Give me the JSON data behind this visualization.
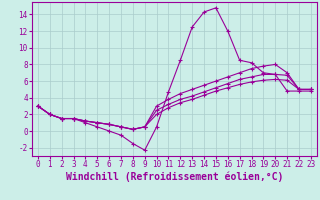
{
  "xlabel": "Windchill (Refroidissement éolien,°C)",
  "xlim": [
    -0.5,
    23.5
  ],
  "ylim": [
    -3,
    15.5
  ],
  "xticks": [
    0,
    1,
    2,
    3,
    4,
    5,
    6,
    7,
    8,
    9,
    10,
    11,
    12,
    13,
    14,
    15,
    16,
    17,
    18,
    19,
    20,
    21,
    22,
    23
  ],
  "yticks": [
    -2,
    0,
    2,
    4,
    6,
    8,
    10,
    12,
    14
  ],
  "bg_color": "#cceee8",
  "line_color": "#990099",
  "grid_color": "#aacccc",
  "series": [
    {
      "x": [
        0,
        1,
        2,
        3,
        4,
        5,
        6,
        7,
        8,
        9,
        10,
        11,
        12,
        13,
        14,
        15,
        16,
        17,
        18,
        19,
        20,
        21,
        22,
        23
      ],
      "y": [
        3.0,
        2.0,
        1.5,
        1.5,
        1.0,
        0.5,
        0.0,
        -0.5,
        -1.5,
        -2.3,
        0.5,
        4.7,
        8.5,
        12.5,
        14.3,
        14.8,
        12.0,
        8.5,
        8.2,
        7.0,
        6.8,
        4.8,
        4.8,
        4.8
      ]
    },
    {
      "x": [
        0,
        1,
        2,
        3,
        4,
        5,
        6,
        7,
        8,
        9,
        10,
        11,
        12,
        13,
        14,
        15,
        16,
        17,
        18,
        19,
        20,
        21,
        22,
        23
      ],
      "y": [
        3.0,
        2.0,
        1.5,
        1.5,
        1.2,
        1.0,
        0.8,
        0.5,
        0.2,
        0.5,
        3.0,
        3.8,
        4.5,
        5.0,
        5.5,
        6.0,
        6.5,
        7.0,
        7.5,
        7.8,
        8.0,
        7.0,
        5.0,
        5.0
      ]
    },
    {
      "x": [
        0,
        1,
        2,
        3,
        4,
        5,
        6,
        7,
        8,
        9,
        10,
        11,
        12,
        13,
        14,
        15,
        16,
        17,
        18,
        19,
        20,
        21,
        22,
        23
      ],
      "y": [
        3.0,
        2.0,
        1.5,
        1.5,
        1.2,
        1.0,
        0.8,
        0.5,
        0.2,
        0.5,
        2.5,
        3.2,
        3.8,
        4.2,
        4.7,
        5.2,
        5.7,
        6.2,
        6.5,
        6.8,
        6.8,
        6.7,
        5.0,
        5.0
      ]
    },
    {
      "x": [
        0,
        1,
        2,
        3,
        4,
        5,
        6,
        7,
        8,
        9,
        10,
        11,
        12,
        13,
        14,
        15,
        16,
        17,
        18,
        19,
        20,
        21,
        22,
        23
      ],
      "y": [
        3.0,
        2.0,
        1.5,
        1.5,
        1.2,
        1.0,
        0.8,
        0.5,
        0.2,
        0.5,
        2.0,
        2.8,
        3.4,
        3.8,
        4.3,
        4.8,
        5.2,
        5.6,
        5.9,
        6.1,
        6.2,
        6.1,
        5.0,
        5.0
      ]
    }
  ],
  "font_family": "monospace",
  "tick_fontsize": 5.5,
  "label_fontsize": 7.0
}
